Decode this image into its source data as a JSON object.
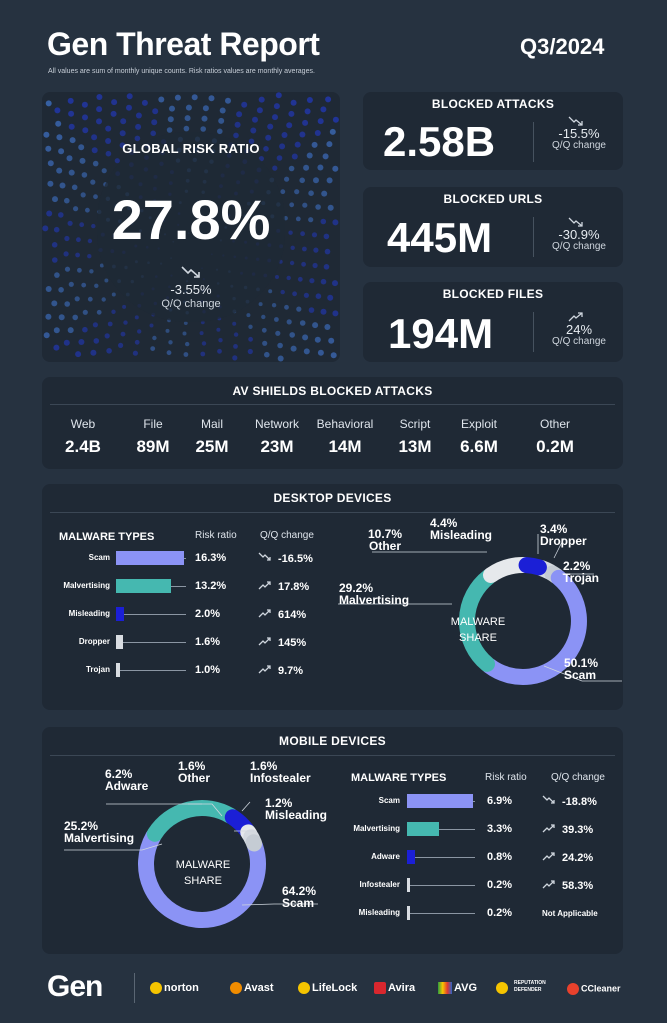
{
  "header": {
    "title": "Gen Threat Report",
    "period": "Q3/2024",
    "note": "All values are sum of monthly unique counts. Risk ratios values are monthly averages."
  },
  "global_risk": {
    "label": "GLOBAL RISK RATIO",
    "value": "27.8%",
    "change": "-3.55%",
    "change_label": "Q/Q change"
  },
  "blocked_attacks": {
    "label": "BLOCKED ATTACKS",
    "value": "2.58B",
    "change": "-15.5%",
    "change_label": "Q/Q change"
  },
  "blocked_urls": {
    "label": "BLOCKED URLS",
    "value": "445M",
    "change": "-30.9%",
    "change_label": "Q/Q change"
  },
  "blocked_files": {
    "label": "BLOCKED FILES",
    "value": "194M",
    "change": "24%",
    "change_label": "Q/Q change"
  },
  "av_shields": {
    "title": "AV SHIELDS BLOCKED ATTACKS",
    "items": [
      {
        "label": "Web",
        "value": "2.4B"
      },
      {
        "label": "File",
        "value": "89M"
      },
      {
        "label": "Mail",
        "value": "25M"
      },
      {
        "label": "Network",
        "value": "23M"
      },
      {
        "label": "Behavioral",
        "value": "14M"
      },
      {
        "label": "Script",
        "value": "13M"
      },
      {
        "label": "Exploit",
        "value": "6.6M"
      },
      {
        "label": "Other",
        "value": "0.2M"
      }
    ]
  },
  "desktop": {
    "title": "DESKTOP DEVICES",
    "col_types": "MALWARE TYPES",
    "col_risk": "Risk ratio",
    "col_qq": "Q/Q change",
    "donut_center": [
      "MALWARE",
      "SHARE"
    ],
    "rows": [
      {
        "name": "Scam",
        "risk": "16.3%",
        "qq": "-16.5%"
      },
      {
        "name": "Malvertising",
        "risk": "13.2%",
        "qq": "17.8%"
      },
      {
        "name": "Misleading",
        "risk": "2.0%",
        "qq": "614%"
      },
      {
        "name": "Dropper",
        "risk": "1.6%",
        "qq": "145%"
      },
      {
        "name": "Trojan",
        "risk": "1.0%",
        "qq": "9.7%"
      }
    ],
    "share_labels": [
      {
        "pct": "10.7%",
        "name": "Other"
      },
      {
        "pct": "4.4%",
        "name": "Misleading"
      },
      {
        "pct": "3.4%",
        "name": "Dropper"
      },
      {
        "pct": "2.2%",
        "name": "Trojan"
      },
      {
        "pct": "29.2%",
        "name": "Malvertising"
      },
      {
        "pct": "50.1%",
        "name": "Scam"
      }
    ]
  },
  "mobile": {
    "title": "MOBILE DEVICES",
    "col_types": "MALWARE TYPES",
    "col_risk": "Risk ratio",
    "col_qq": "Q/Q change",
    "donut_center": [
      "MALWARE",
      "SHARE"
    ],
    "rows": [
      {
        "name": "Scam",
        "risk": "6.9%",
        "qq": "-18.8%"
      },
      {
        "name": "Malvertising",
        "risk": "3.3%",
        "qq": "39.3%"
      },
      {
        "name": "Adware",
        "risk": "0.8%",
        "qq": "24.2%"
      },
      {
        "name": "Infostealer",
        "risk": "0.2%",
        "qq": "58.3%"
      },
      {
        "name": "Misleading",
        "risk": "0.2%",
        "qq": "Not Applicable"
      }
    ],
    "share_labels": [
      {
        "pct": "6.2%",
        "name": "Adware"
      },
      {
        "pct": "1.6%",
        "name": "Other"
      },
      {
        "pct": "1.6%",
        "name": "Infostealer"
      },
      {
        "pct": "1.2%",
        "name": "Misleading"
      },
      {
        "pct": "25.2%",
        "name": "Malvertising"
      },
      {
        "pct": "64.2%",
        "name": "Scam"
      }
    ]
  },
  "footer": {
    "brands": [
      "Gen",
      "norton",
      "Avast",
      "LifeLock",
      "Avira",
      "AVG",
      "REPUTATION DEFENDER",
      "CCleaner"
    ]
  },
  "colors": {
    "scam": "#8b93f5",
    "malvertising": "#45b8b0",
    "misleading": "#1b1fd6",
    "light": "#d9dde2",
    "bg": "#263240",
    "card": "#1f2935"
  },
  "chart_data": [
    {
      "type": "bar",
      "title": "DESKTOP DEVICES",
      "categories": [
        "Scam",
        "Malvertising",
        "Misleading",
        "Dropper",
        "Trojan"
      ],
      "series": [
        {
          "name": "Risk ratio",
          "values": [
            16.3,
            13.2,
            2.0,
            1.6,
            1.0
          ]
        },
        {
          "name": "Q/Q change",
          "values": [
            -16.5,
            17.8,
            614,
            145,
            9.7
          ]
        }
      ]
    },
    {
      "type": "pie",
      "title": "MALWARE SHARE",
      "categories": [
        "Scam",
        "Malvertising",
        "Other",
        "Misleading",
        "Dropper",
        "Trojan"
      ],
      "values": [
        50.1,
        29.2,
        10.7,
        4.4,
        3.4,
        2.2
      ]
    },
    {
      "type": "bar",
      "title": "MOBILE DEVICES",
      "categories": [
        "Scam",
        "Malvertising",
        "Adware",
        "Infostealer",
        "Misleading"
      ],
      "series": [
        {
          "name": "Risk ratio",
          "values": [
            6.9,
            3.3,
            0.8,
            0.2,
            0.2
          ]
        },
        {
          "name": "Q/Q change",
          "values": [
            -18.8,
            39.3,
            24.2,
            58.3,
            null
          ]
        }
      ]
    },
    {
      "type": "pie",
      "title": "MALWARE SHARE",
      "categories": [
        "Scam",
        "Malvertising",
        "Adware",
        "Other",
        "Infostealer",
        "Misleading"
      ],
      "values": [
        64.2,
        25.2,
        6.2,
        1.6,
        1.6,
        1.2
      ]
    }
  ]
}
